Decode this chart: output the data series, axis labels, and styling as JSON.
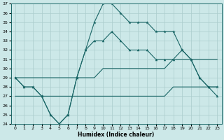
{
  "xlabel": "Humidex (Indice chaleur)",
  "bg_color": "#cce8e8",
  "grid_color": "#aacccc",
  "line_color": "#1a6666",
  "hours": [
    0,
    1,
    2,
    3,
    4,
    5,
    6,
    7,
    8,
    9,
    10,
    11,
    12,
    13,
    14,
    15,
    16,
    17,
    18,
    19,
    20,
    21,
    22,
    23
  ],
  "max_line": [
    29,
    28,
    28,
    27,
    25,
    24,
    25,
    29,
    32,
    35,
    37,
    37,
    36,
    35,
    35,
    35,
    34,
    34,
    34,
    32,
    31,
    29,
    28,
    28
  ],
  "mid_line": [
    29,
    28,
    28,
    27,
    25,
    24,
    25,
    29,
    32,
    33,
    33,
    34,
    33,
    32,
    32,
    32,
    31,
    31,
    31,
    32,
    31,
    29,
    28,
    27
  ],
  "upper_diag": [
    29,
    29,
    29,
    29,
    29,
    29,
    29,
    29,
    29,
    29,
    30,
    30,
    30,
    30,
    30,
    30,
    30,
    30,
    31,
    31,
    31,
    31,
    31,
    31
  ],
  "lower_diag": [
    27,
    27,
    27,
    27,
    27,
    27,
    27,
    27,
    27,
    27,
    27,
    27,
    27,
    27,
    27,
    27,
    27,
    27,
    28,
    28,
    28,
    28,
    28,
    28
  ],
  "ylim": [
    24,
    37
  ],
  "yticks": [
    24,
    25,
    26,
    27,
    28,
    29,
    30,
    31,
    32,
    33,
    34,
    35,
    36,
    37
  ],
  "xlim": [
    -0.5,
    23.5
  ],
  "xticks": [
    0,
    1,
    2,
    3,
    4,
    5,
    6,
    7,
    8,
    9,
    10,
    11,
    12,
    13,
    14,
    15,
    16,
    17,
    18,
    19,
    20,
    21,
    22,
    23
  ],
  "figsize": [
    3.2,
    2.0
  ],
  "dpi": 100
}
